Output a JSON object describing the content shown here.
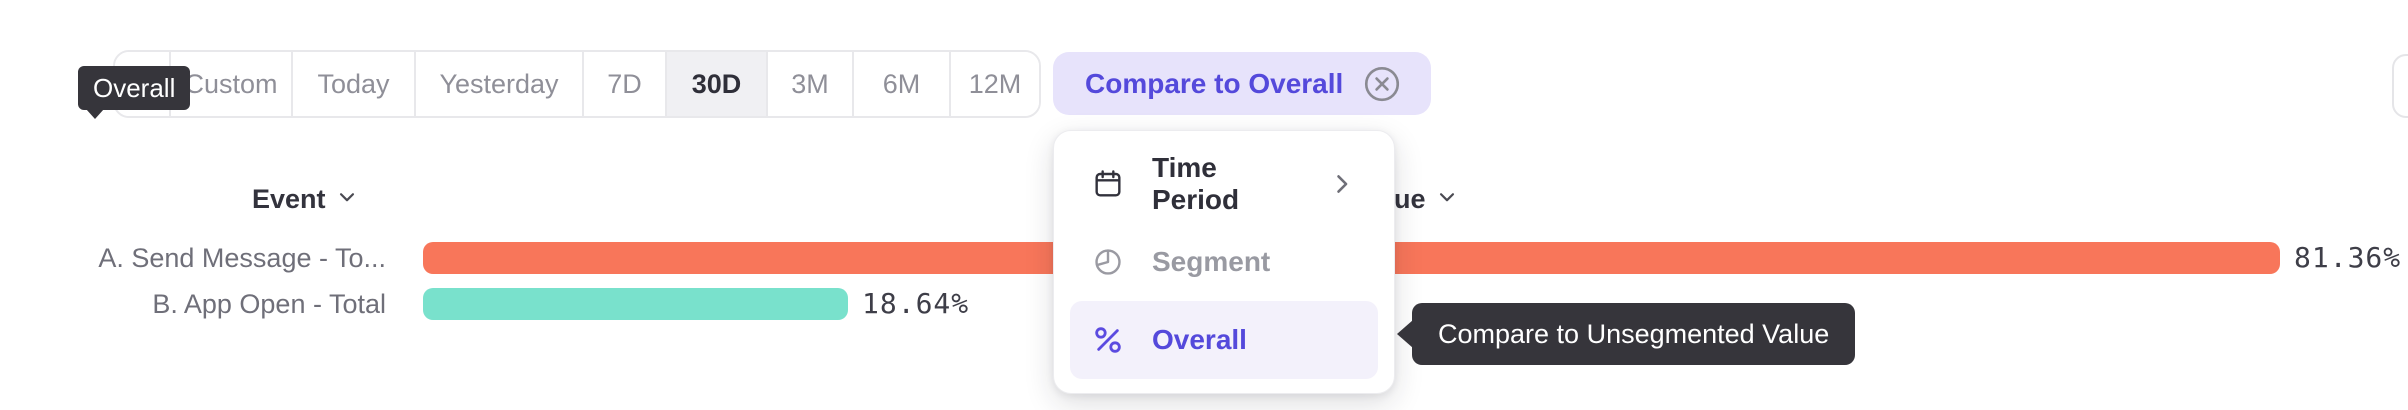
{
  "toolbar": {
    "calendar_button": {
      "icon": "calendar-icon"
    },
    "date_ranges": [
      {
        "label": "Custom",
        "selected": false
      },
      {
        "label": "Today",
        "selected": false
      },
      {
        "label": "Yesterday",
        "selected": false
      },
      {
        "label": "7D",
        "selected": false
      },
      {
        "label": "30D",
        "selected": true
      },
      {
        "label": "3M",
        "selected": false
      },
      {
        "label": "6M",
        "selected": false
      },
      {
        "label": "12M",
        "selected": false
      }
    ],
    "compare_chip": {
      "label": "Compare to Overall",
      "dismiss_icon": "circle-x-icon"
    }
  },
  "tooltips": {
    "overall_tooltip": "Overall",
    "compare_hint_tooltip": "Compare to Unsegmented Value"
  },
  "dropdown_menu": {
    "items": [
      {
        "label": "Time Period",
        "icon": "calendar-icon",
        "has_submenu": true,
        "state": "default"
      },
      {
        "label": "Segment",
        "icon": "segment-icon",
        "has_submenu": false,
        "state": "muted"
      },
      {
        "label": "Overall",
        "icon": "percent-icon",
        "has_submenu": false,
        "state": "selected"
      }
    ]
  },
  "table_headers": {
    "event": "Event",
    "value": "Value"
  },
  "chart_data": {
    "type": "bar",
    "orientation": "horizontal",
    "categories": [
      "A. Send Message - To...",
      "B. App Open - Total"
    ],
    "values": [
      81.36,
      18.64
    ],
    "value_labels": [
      "81.36%",
      "18.64%"
    ],
    "series_colors": [
      "#F8765A",
      "#79E1CC"
    ],
    "axis_max": 81.36,
    "xlabel": "",
    "ylabel": "",
    "grid": false,
    "legend": "none"
  },
  "colors": {
    "accent_purple": "#5449DB",
    "chip_bg": "#E7E3FB",
    "bar_orange": "#F8765A",
    "bar_teal": "#79E1CC",
    "tooltip_bg": "#36353B",
    "selected_range_bg": "#F0F0F3"
  }
}
